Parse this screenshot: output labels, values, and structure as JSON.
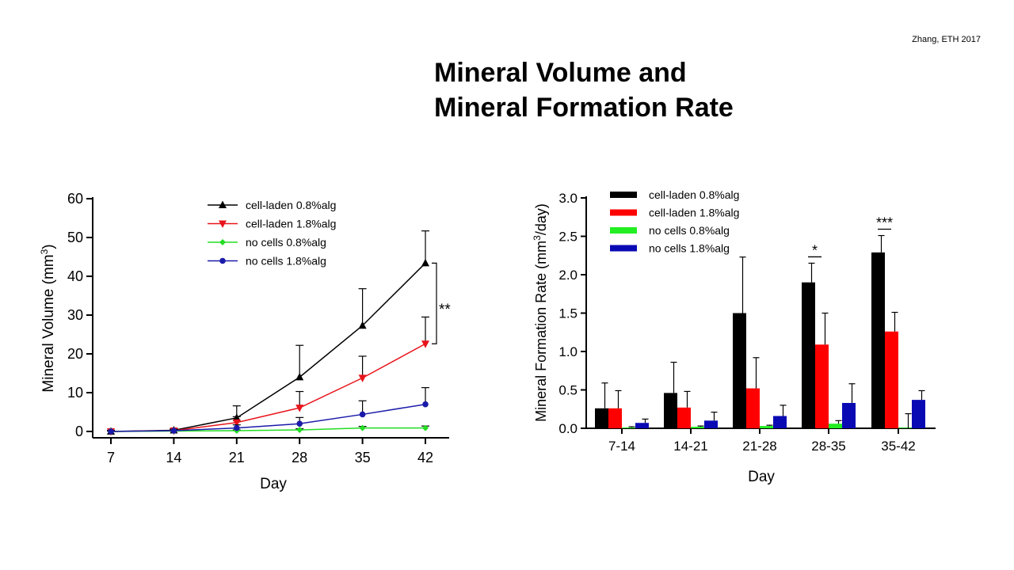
{
  "slide": {
    "citation": "Zhang, ETH 2017",
    "title_line1": "Mineral Volume and",
    "title_line2": "Mineral Formation Rate"
  },
  "chart_data": [
    {
      "type": "line",
      "xlabel": "Day",
      "ylabel": "Mineral Volume (mm³)",
      "x": [
        7,
        14,
        21,
        28,
        35,
        42
      ],
      "x_ticks": [
        "7",
        "14",
        "21",
        "28",
        "35",
        "42"
      ],
      "ylim": [
        0,
        60
      ],
      "y_ticks": [
        "0",
        "10",
        "20",
        "30",
        "40",
        "50",
        "60"
      ],
      "legend_position": "top-center",
      "significance": "**",
      "series": [
        {
          "name": "cell-laden 0.8%alg",
          "color": "#000000",
          "marker": "triangle-up",
          "values": [
            0,
            0.3,
            3.5,
            14,
            27.3,
            43.4
          ],
          "errors": [
            0.3,
            0.4,
            3.1,
            8.2,
            9.5,
            8.3
          ]
        },
        {
          "name": "cell-laden 1.8%alg",
          "color": "#e8141c",
          "marker": "triangle-down",
          "values": [
            0,
            0.2,
            2.3,
            6.1,
            13.8,
            22.6
          ],
          "errors": [
            0.3,
            0.3,
            1.5,
            4.2,
            5.6,
            6.9
          ]
        },
        {
          "name": "no cells 0.8%alg",
          "color": "#22dd22",
          "marker": "diamond",
          "values": [
            0,
            0.1,
            0.2,
            0.4,
            0.9,
            0.9
          ],
          "errors": [
            0.1,
            0.1,
            0.2,
            0.3,
            0.4,
            0.5
          ]
        },
        {
          "name": "no cells 1.8%alg",
          "color": "#1a1aaa",
          "marker": "circle",
          "values": [
            0,
            0.2,
            0.9,
            2,
            4.4,
            7
          ],
          "errors": [
            0.2,
            0.3,
            0.8,
            1.6,
            3.5,
            4.3
          ]
        }
      ]
    },
    {
      "type": "bar",
      "xlabel": "Day",
      "ylabel": "Mineral Formation Rate (mm³/day)",
      "categories": [
        "7-14",
        "14-21",
        "21-28",
        "28-35",
        "35-42"
      ],
      "ylim": [
        0,
        3
      ],
      "y_ticks": [
        "0.0",
        "0.5",
        "1.0",
        "1.5",
        "2.0",
        "2.5",
        "3.0"
      ],
      "legend_position": "top-left",
      "significance": [
        {
          "category": "28-35",
          "label": "*"
        },
        {
          "category": "35-42",
          "label": "***"
        }
      ],
      "series": [
        {
          "name": "cell-laden 0.8%alg",
          "color": "#000000",
          "values": [
            0.26,
            0.46,
            1.5,
            1.9,
            2.29
          ],
          "errors": [
            0.33,
            0.4,
            0.73,
            0.25,
            0.22
          ]
        },
        {
          "name": "cell-laden 1.8%alg",
          "color": "#ff0000",
          "values": [
            0.26,
            0.27,
            0.52,
            1.09,
            1.26
          ],
          "errors": [
            0.23,
            0.21,
            0.4,
            0.41,
            0.25
          ]
        },
        {
          "name": "no cells 0.8%alg",
          "color": "#22ee22",
          "values": [
            0.01,
            0.02,
            0.03,
            0.06,
            0
          ],
          "errors": [
            0.01,
            0.01,
            0.01,
            0.04,
            0.19
          ]
        },
        {
          "name": "no cells 1.8%alg",
          "color": "#0a0ab4",
          "values": [
            0.07,
            0.1,
            0.16,
            0.33,
            0.37
          ],
          "errors": [
            0.05,
            0.11,
            0.14,
            0.25,
            0.12
          ]
        }
      ]
    }
  ]
}
